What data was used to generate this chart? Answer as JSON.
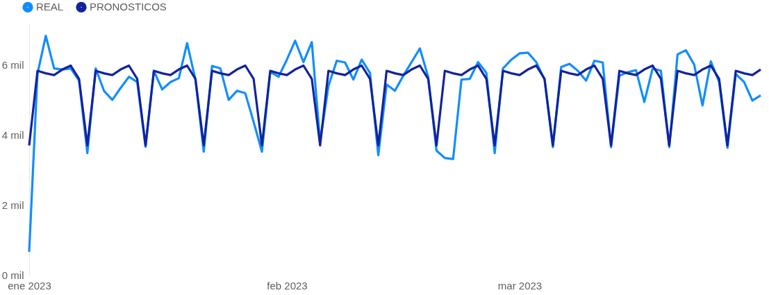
{
  "chart_data": {
    "type": "line",
    "legend": "top left",
    "grid": false,
    "marker": "none",
    "line_style": "solid",
    "x": [
      "2023-01-01",
      "2023-01-02",
      "2023-01-03",
      "2023-01-04",
      "2023-01-05",
      "2023-01-06",
      "2023-01-07",
      "2023-01-08",
      "2023-01-09",
      "2023-01-10",
      "2023-01-11",
      "2023-01-12",
      "2023-01-13",
      "2023-01-14",
      "2023-01-15",
      "2023-01-16",
      "2023-01-17",
      "2023-01-18",
      "2023-01-19",
      "2023-01-20",
      "2023-01-21",
      "2023-01-22",
      "2023-01-23",
      "2023-01-24",
      "2023-01-25",
      "2023-01-26",
      "2023-01-27",
      "2023-01-28",
      "2023-01-29",
      "2023-01-30",
      "2023-01-31",
      "2023-02-01",
      "2023-02-02",
      "2023-02-03",
      "2023-02-04",
      "2023-02-05",
      "2023-02-06",
      "2023-02-07",
      "2023-02-08",
      "2023-02-09",
      "2023-02-10",
      "2023-02-11",
      "2023-02-12",
      "2023-02-13",
      "2023-02-14",
      "2023-02-15",
      "2023-02-16",
      "2023-02-17",
      "2023-02-18",
      "2023-02-19",
      "2023-02-20",
      "2023-02-21",
      "2023-02-22",
      "2023-02-23",
      "2023-02-24",
      "2023-02-25",
      "2023-02-26",
      "2023-02-27",
      "2023-02-28",
      "2023-03-01",
      "2023-03-02",
      "2023-03-03",
      "2023-03-04",
      "2023-03-05",
      "2023-03-06",
      "2023-03-07",
      "2023-03-08",
      "2023-03-09",
      "2023-03-10",
      "2023-03-11",
      "2023-03-12",
      "2023-03-13",
      "2023-03-14",
      "2023-03-15",
      "2023-03-16",
      "2023-03-17",
      "2023-03-18",
      "2023-03-19",
      "2023-03-20",
      "2023-03-21",
      "2023-03-22",
      "2023-03-23",
      "2023-03-24",
      "2023-03-25",
      "2023-03-26",
      "2023-03-27",
      "2023-03-28",
      "2023-03-29",
      "2023-03-30"
    ],
    "series": [
      {
        "name": "REAL",
        "color": "#118dff",
        "values": [
          0.66,
          5.75,
          6.83,
          5.9,
          5.87,
          5.9,
          5.55,
          3.48,
          5.9,
          5.26,
          5.0,
          5.34,
          5.66,
          5.51,
          3.66,
          5.83,
          5.3,
          5.51,
          5.62,
          6.62,
          5.58,
          3.52,
          5.97,
          5.9,
          5.0,
          5.26,
          5.19,
          4.37,
          3.52,
          5.8,
          5.66,
          6.15,
          6.69,
          6.08,
          6.65,
          3.8,
          5.4,
          6.12,
          6.07,
          5.58,
          6.15,
          5.77,
          3.42,
          5.44,
          5.26,
          5.69,
          6.08,
          6.47,
          5.66,
          3.55,
          3.34,
          3.31,
          5.58,
          5.6,
          6.08,
          5.77,
          3.48,
          5.9,
          6.15,
          6.33,
          6.35,
          6.08,
          5.58,
          3.65,
          5.94,
          6.03,
          5.83,
          5.55,
          6.12,
          6.07,
          3.65,
          5.69,
          5.79,
          5.85,
          4.94,
          5.9,
          5.83,
          3.65,
          6.3,
          6.42,
          6.01,
          4.84,
          6.1,
          5.51,
          3.63,
          5.74,
          5.51,
          4.98,
          5.13
        ]
      },
      {
        "name": "PRONOSTICOS",
        "color": "#12239e",
        "values": [
          3.7,
          5.83,
          5.76,
          5.71,
          5.87,
          5.98,
          5.6,
          3.7,
          5.83,
          5.76,
          5.71,
          5.87,
          5.98,
          5.6,
          3.7,
          5.83,
          5.76,
          5.71,
          5.87,
          5.98,
          5.6,
          3.7,
          5.83,
          5.76,
          5.71,
          5.87,
          5.98,
          5.6,
          3.7,
          5.83,
          5.76,
          5.71,
          5.87,
          5.98,
          5.6,
          3.7,
          5.83,
          5.76,
          5.71,
          5.87,
          5.98,
          5.6,
          3.7,
          5.83,
          5.76,
          5.71,
          5.87,
          5.98,
          5.6,
          3.7,
          5.83,
          5.76,
          5.71,
          5.87,
          5.98,
          5.6,
          3.7,
          5.83,
          5.76,
          5.71,
          5.87,
          5.98,
          5.6,
          3.7,
          5.83,
          5.76,
          5.71,
          5.87,
          5.98,
          5.6,
          3.7,
          5.83,
          5.76,
          5.71,
          5.87,
          5.98,
          5.6,
          3.7,
          5.83,
          5.76,
          5.71,
          5.87,
          5.98,
          5.6,
          3.7,
          5.83,
          5.76,
          5.71,
          5.87
        ]
      }
    ],
    "xlim": [
      "2023-01-01",
      "2023-03-31"
    ],
    "xticks": [
      {
        "value": "2023-01-01",
        "label": "ene 2023"
      },
      {
        "value": "2023-02-01",
        "label": "feb 2023"
      },
      {
        "value": "2023-03-01",
        "label": "mar 2023"
      }
    ],
    "ylim": [
      0,
      7.2
    ],
    "yticks": [
      {
        "value": 0,
        "label": "0 mil"
      },
      {
        "value": 2,
        "label": "2 mil"
      },
      {
        "value": 4,
        "label": "4 mil"
      },
      {
        "value": 6,
        "label": "6 mil"
      }
    ]
  }
}
